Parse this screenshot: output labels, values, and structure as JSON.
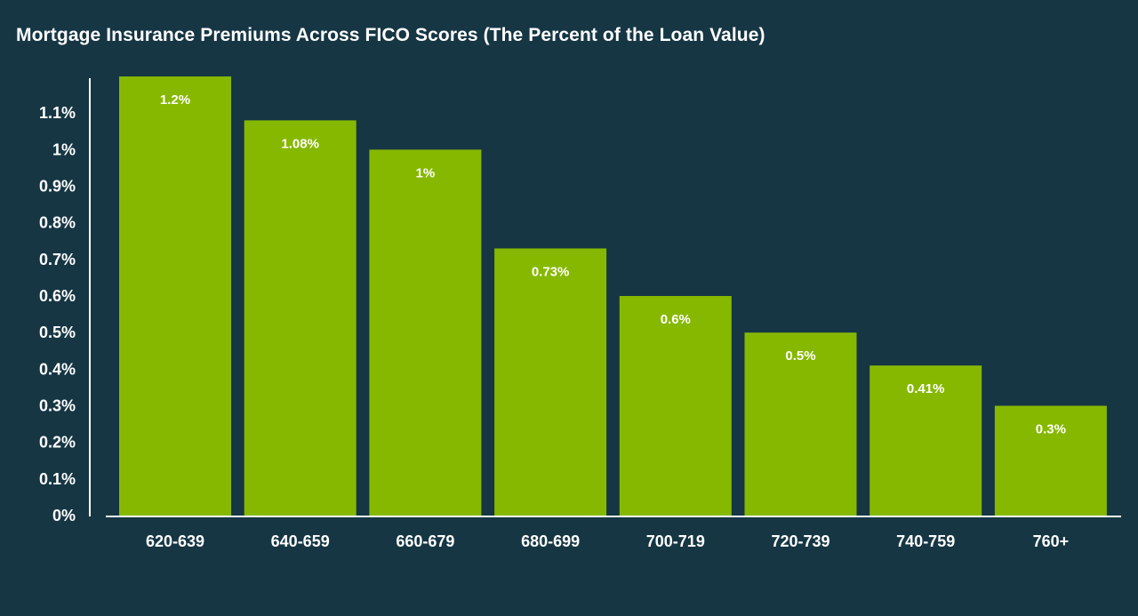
{
  "colors": {
    "background": "#163644",
    "bar": "#86b800",
    "axis": "#ffffff",
    "text": "#ffffff"
  },
  "chart_data": {
    "type": "bar",
    "title": "Mortgage Insurance Premiums Across FICO Scores (The Percent of the Loan Value)",
    "xlabel": "",
    "ylabel": "",
    "categories": [
      "620-639",
      "640-659",
      "660-679",
      "680-699",
      "700-719",
      "720-739",
      "740-759",
      "760+"
    ],
    "values": [
      1.2,
      1.08,
      1,
      0.73,
      0.6,
      0.5,
      0.41,
      0.3
    ],
    "value_labels": [
      "1.2%",
      "1.08%",
      "1%",
      "0.73%",
      "0.6%",
      "0.5%",
      "0.41%",
      "0.3%"
    ],
    "y_ticks": [
      0,
      0.1,
      0.2,
      0.3,
      0.4,
      0.5,
      0.6,
      0.7,
      0.8,
      0.9,
      1,
      1.1
    ],
    "y_tick_labels": [
      "0%",
      "0.1%",
      "0.2%",
      "0.3%",
      "0.4%",
      "0.5%",
      "0.6%",
      "0.7%",
      "0.8%",
      "0.9%",
      "1%",
      "1.1%"
    ],
    "ylim": [
      0,
      1.2
    ],
    "grid": false,
    "legend": "none"
  }
}
